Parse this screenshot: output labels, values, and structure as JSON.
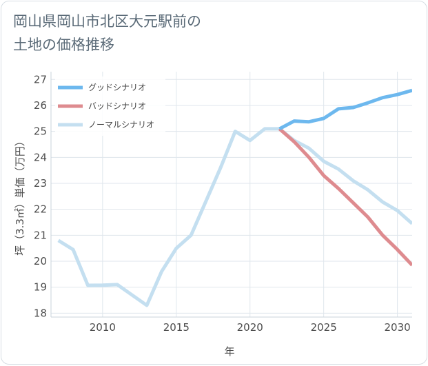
{
  "title_lines": [
    "岡山県岡山市北区大元駅前の",
    "土地の価格推移"
  ],
  "chart_data": {
    "type": "line",
    "title": "岡山県岡山市北区大元駅前の土地の価格推移",
    "xlabel": "年",
    "ylabel": "坪（3.3㎡）単価（万円）",
    "xlim": [
      2006.5,
      2031
    ],
    "ylim": [
      17.85,
      27.3
    ],
    "xticks": [
      2010,
      2015,
      2020,
      2025,
      2030
    ],
    "yticks": [
      18,
      19,
      20,
      21,
      22,
      23,
      24,
      25,
      26,
      27
    ],
    "grid": true,
    "legend_position": "top-left",
    "series": [
      {
        "name": "グッドシナリオ",
        "color": "#6db8ee",
        "x": [
          2022,
          2023,
          2024,
          2025,
          2026,
          2027,
          2028,
          2029,
          2030,
          2031
        ],
        "y": [
          25.1,
          25.4,
          25.37,
          25.5,
          25.87,
          25.92,
          26.1,
          26.3,
          26.42,
          26.58
        ]
      },
      {
        "name": "バッドシナリオ",
        "color": "#de8b8f",
        "x": [
          2022,
          2023,
          2024,
          2025,
          2026,
          2027,
          2028,
          2029,
          2030,
          2031
        ],
        "y": [
          25.1,
          24.6,
          24.0,
          23.3,
          22.8,
          22.25,
          21.7,
          21.0,
          20.45,
          19.85
        ]
      },
      {
        "name": "ノーマルシナリオ",
        "color": "#c4dff0",
        "x": [
          2007,
          2008,
          2009,
          2010,
          2011,
          2012,
          2013,
          2014,
          2015,
          2016,
          2017,
          2018,
          2019,
          2020,
          2021,
          2022,
          2023,
          2024,
          2025,
          2026,
          2027,
          2028,
          2029,
          2030,
          2031
        ],
        "y": [
          20.8,
          20.45,
          19.07,
          19.08,
          19.1,
          18.7,
          18.3,
          19.6,
          20.5,
          21.0,
          22.3,
          23.6,
          25.0,
          24.65,
          25.1,
          25.1,
          24.65,
          24.35,
          23.85,
          23.55,
          23.1,
          22.75,
          22.28,
          21.95,
          21.45
        ]
      }
    ]
  }
}
